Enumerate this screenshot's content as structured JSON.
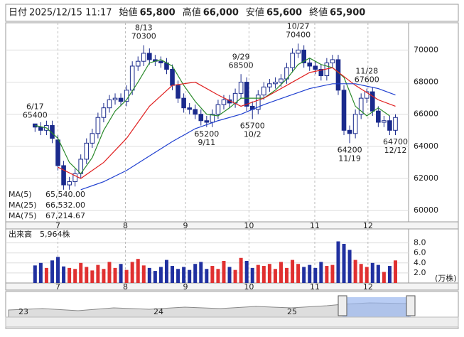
{
  "header": {
    "fields": [
      {
        "label": "日付",
        "value": "2025/12/15 11:17"
      },
      {
        "label": "始値",
        "value": "65,800"
      },
      {
        "label": "高値",
        "value": "66,000",
        "color": "#e00000"
      },
      {
        "label": "安値",
        "value": "65,600",
        "color": "#008000"
      },
      {
        "label": "終値",
        "value": "65,900"
      }
    ]
  },
  "chart_data": [
    {
      "type": "candlestick",
      "up_color": "#ffffff",
      "down_color": "#1a2a8c",
      "ylim": [
        59300,
        71700
      ],
      "yticks": [
        60000,
        62000,
        64000,
        66000,
        68000,
        70000
      ],
      "xlim": [
        -2.4,
        65.3
      ],
      "xticks": [
        {
          "value": 4,
          "label": "7"
        },
        {
          "value": 15.8,
          "label": "8"
        },
        {
          "value": 26.3,
          "label": "9"
        },
        {
          "value": 37.4,
          "label": "10"
        },
        {
          "value": 48.9,
          "label": "11"
        },
        {
          "value": 58.2,
          "label": "12"
        }
      ],
      "open": [
        65400,
        65200,
        65000,
        65300,
        64400,
        62800,
        61600,
        61800,
        62300,
        63200,
        64200,
        64800,
        65800,
        66400,
        66900,
        67000,
        66800,
        67500,
        69000,
        69300,
        69800,
        69400,
        69300,
        69200,
        68800,
        67800,
        67000,
        66400,
        66300,
        66000,
        65600,
        65500,
        66000,
        66600,
        66900,
        66700,
        67300,
        68000,
        66500,
        66300,
        67200,
        67700,
        67900,
        68000,
        68200,
        68900,
        69800,
        70000,
        69200,
        69000,
        68800,
        68400,
        69200,
        69400,
        67500,
        65000,
        64800,
        66000,
        67000,
        67400,
        66200,
        65500,
        65600,
        65000
      ],
      "high": [
        65400,
        65500,
        65600,
        65600,
        64700,
        63100,
        62100,
        62600,
        63500,
        64500,
        65100,
        66100,
        66700,
        67200,
        67300,
        67300,
        67800,
        69300,
        69600,
        70300,
        70100,
        69700,
        69600,
        69500,
        69100,
        68100,
        67300,
        66700,
        66600,
        66300,
        65900,
        66300,
        66900,
        67200,
        67200,
        67600,
        68500,
        68300,
        66800,
        67500,
        68000,
        68200,
        68300,
        68500,
        69200,
        70100,
        70400,
        70300,
        69500,
        69300,
        69100,
        69500,
        69700,
        69700,
        67800,
        65300,
        66300,
        67300,
        67600,
        67700,
        66500,
        65900,
        65900,
        66000
      ],
      "low": [
        64900,
        64700,
        64700,
        64200,
        62500,
        61300,
        61300,
        61500,
        62000,
        62900,
        63900,
        64500,
        65500,
        66100,
        66600,
        66500,
        66500,
        67200,
        68700,
        69000,
        69100,
        69000,
        68900,
        68500,
        67500,
        66700,
        66100,
        66000,
        65700,
        65300,
        65200,
        65200,
        65700,
        66300,
        66400,
        66400,
        67000,
        66200,
        65700,
        66000,
        66900,
        67400,
        67600,
        67700,
        67900,
        68600,
        69500,
        68900,
        68700,
        68500,
        68100,
        68100,
        68900,
        67200,
        64700,
        64200,
        64500,
        65700,
        66700,
        65900,
        65200,
        65200,
        64700,
        64700
      ],
      "close": [
        65200,
        65000,
        65300,
        64500,
        62800,
        61600,
        61800,
        62300,
        63200,
        64200,
        64800,
        65800,
        66400,
        66900,
        67000,
        66800,
        67500,
        69000,
        69300,
        69800,
        69400,
        69300,
        69200,
        68800,
        67800,
        67000,
        66400,
        66300,
        66000,
        65600,
        65500,
        66000,
        66600,
        66900,
        66700,
        67300,
        68000,
        66500,
        66300,
        67200,
        67700,
        67900,
        68000,
        68200,
        68900,
        69800,
        70000,
        69200,
        69000,
        68800,
        68400,
        69200,
        69400,
        67500,
        65000,
        64800,
        66000,
        67000,
        67400,
        66200,
        65500,
        65600,
        65000,
        65800
      ],
      "series": [
        {
          "name": "MA(5)",
          "color": "#2a8a2a",
          "legend_value": "65,540.00",
          "x": [
            0,
            2,
            4,
            6,
            8,
            10,
            12,
            14,
            16,
            18,
            20,
            22,
            24,
            26,
            28,
            30,
            32,
            34,
            36,
            38,
            40,
            42,
            44,
            46,
            48,
            50,
            52,
            54,
            56,
            58,
            60,
            62
          ],
          "values": [
            65300,
            65150,
            64500,
            63000,
            62300,
            63300,
            65000,
            66200,
            66900,
            68000,
            69200,
            69400,
            69000,
            67800,
            66800,
            66000,
            65900,
            66400,
            67000,
            67000,
            67000,
            67500,
            68200,
            69100,
            69500,
            69100,
            68900,
            68300,
            66500,
            65900,
            66400,
            65900
          ]
        },
        {
          "name": "MA(25)",
          "color": "#e02020",
          "legend_value": "66,532.00",
          "x": [
            4,
            8,
            12,
            16,
            20,
            24,
            28,
            32,
            36,
            40,
            44,
            48,
            52,
            56,
            60,
            63
          ],
          "values": [
            62700,
            62000,
            63000,
            64500,
            66500,
            67800,
            68000,
            67200,
            66500,
            67000,
            67800,
            68600,
            68900,
            67800,
            66900,
            66500
          ]
        },
        {
          "name": "MA(75)",
          "color": "#2040d0",
          "legend_value": "67,214.67",
          "x": [
            8,
            12,
            16,
            20,
            24,
            28,
            32,
            36,
            40,
            44,
            48,
            52,
            56,
            60,
            63
          ],
          "values": [
            61300,
            61800,
            62500,
            63400,
            64300,
            65100,
            65600,
            66000,
            66600,
            67100,
            67600,
            67900,
            67900,
            67600,
            67200
          ]
        }
      ],
      "annotations": [
        {
          "index": 0,
          "kind": "high",
          "date": "6/17",
          "price": 65400
        },
        {
          "index": 19,
          "kind": "high",
          "date": "8/13",
          "price": 70300
        },
        {
          "index": 36,
          "kind": "high",
          "date": "9/29",
          "price": 68500
        },
        {
          "index": 46,
          "kind": "high",
          "date": "10/27",
          "price": 70400
        },
        {
          "index": 58,
          "kind": "high",
          "date": "11/28",
          "price": 67600
        },
        {
          "index": 30,
          "kind": "low",
          "date": "9/11",
          "price": 65200
        },
        {
          "index": 38,
          "kind": "low",
          "date": "10/2",
          "price": 65700
        },
        {
          "index": 55,
          "kind": "low",
          "date": "11/19",
          "price": 64200
        },
        {
          "index": 63,
          "kind": "low",
          "date": "12/12",
          "price": 64700
        }
      ]
    },
    {
      "type": "bar",
      "title": "出来高",
      "subtitle": "5,964株",
      "unit": "(万株)",
      "up_color": "#e03030",
      "down_color": "#2030a0",
      "ylim": [
        0,
        10.5
      ],
      "yticks": [
        {
          "value": 2,
          "label": "2.0"
        },
        {
          "value": 4,
          "label": "4.0"
        },
        {
          "value": 6,
          "label": "6.0"
        },
        {
          "value": 8,
          "label": "8.0"
        }
      ],
      "values": [
        3.5,
        4.0,
        3.0,
        4.5,
        5.2,
        3.3,
        3.0,
        2.8,
        4.0,
        3.2,
        2.5,
        3.6,
        2.8,
        4.2,
        3.0,
        3.8,
        2.6,
        4.2,
        4.8,
        3.5,
        3.0,
        2.4,
        3.2,
        4.6,
        3.4,
        2.8,
        3.2,
        2.6,
        3.8,
        4.2,
        2.8,
        3.4,
        2.8,
        4.4,
        3.2,
        2.6,
        5.0,
        4.4,
        3.0,
        3.6,
        3.4,
        3.8,
        2.8,
        4.2,
        3.0,
        4.6,
        3.8,
        3.2,
        3.6,
        3.0,
        4.2,
        3.4,
        3.6,
        8.3,
        7.8,
        6.6,
        4.6,
        3.8,
        3.2,
        4.0,
        3.6,
        2.2,
        3.4,
        4.5
      ]
    }
  ],
  "navigator": {
    "labels": [
      "23",
      "24",
      "25"
    ]
  }
}
